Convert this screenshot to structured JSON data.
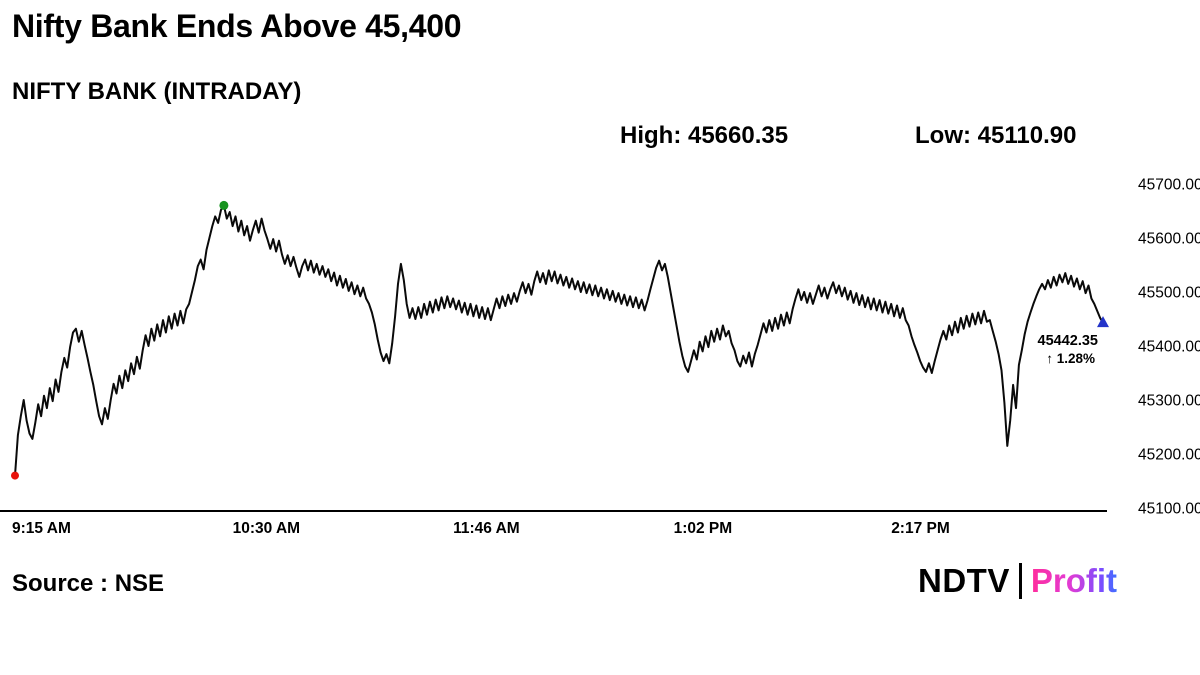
{
  "header": {
    "title": "Nifty Bank Ends Above 45,400",
    "subtitle": "NIFTY BANK (INTRADAY)",
    "high_label": "High: 45660.35",
    "low_label": "Low: 45110.90"
  },
  "footer": {
    "source": "Source : NSE",
    "brand_ndtv": "NDTV",
    "brand_profit": "Profit"
  },
  "chart_data": {
    "type": "line",
    "title": "NIFTY BANK (INTRADAY)",
    "series_name": "NIFTY BANK",
    "high": 45660.35,
    "low": 45110.9,
    "ylim": [
      45100,
      45700
    ],
    "xlim_minutes": [
      0,
      375
    ],
    "interval_minutes": 1,
    "y_ticks": [
      "45700.00",
      "45600.00",
      "45500.00",
      "45400.00",
      "45300.00",
      "45200.00",
      "45100.00"
    ],
    "x_ticks": [
      {
        "t": 0,
        "label": "9:15 AM"
      },
      {
        "t": 75,
        "label": "10:30 AM"
      },
      {
        "t": 151,
        "label": "11:46 AM"
      },
      {
        "t": 227,
        "label": "1:02 PM"
      },
      {
        "t": 302,
        "label": "2:17 PM"
      }
    ],
    "line_color": "#0a0a0a",
    "open_marker": {
      "t": 0,
      "value": 45160,
      "color": "#e8130c"
    },
    "high_marker": {
      "t": 72,
      "value": 45660.35,
      "color": "#17931f"
    },
    "close_marker": {
      "t": 375,
      "value": 45442.35,
      "color": "#2434c9",
      "shape": "triangle-up"
    },
    "last_price_label": "45442.35",
    "change_label": "↑ 1.28%",
    "change_color": "#1a8f28",
    "values_by_minute": [
      45160,
      45235,
      45270,
      45300,
      45262,
      45238,
      45228,
      45258,
      45292,
      45270,
      45308,
      45285,
      45322,
      45298,
      45338,
      45315,
      45352,
      45378,
      45360,
      45398,
      45425,
      45432,
      45408,
      45428,
      45402,
      45378,
      45352,
      45328,
      45298,
      45270,
      45255,
      45285,
      45265,
      45300,
      45330,
      45312,
      45345,
      45322,
      45355,
      45335,
      45368,
      45348,
      45380,
      45358,
      45392,
      45420,
      45400,
      45432,
      45410,
      45440,
      45418,
      45448,
      45425,
      45455,
      45432,
      45460,
      45438,
      45465,
      45442,
      45468,
      45478,
      45500,
      45522,
      45548,
      45560,
      45542,
      45578,
      45600,
      45622,
      45640,
      45628,
      45652,
      45660.35,
      45636,
      45648,
      45622,
      45640,
      45612,
      45632,
      45605,
      45622,
      45595,
      45615,
      45632,
      45610,
      45636,
      45614,
      45598,
      45580,
      45598,
      45575,
      45595,
      45570,
      45552,
      45568,
      45548,
      45565,
      45545,
      45528,
      45548,
      45560,
      45540,
      45558,
      45536,
      45552,
      45532,
      45548,
      45528,
      45542,
      45520,
      45536,
      45512,
      45530,
      45508,
      45524,
      45502,
      45518,
      45496,
      45512,
      45492,
      45508,
      45488,
      45478,
      45462,
      45440,
      45412,
      45388,
      45372,
      45385,
      45368,
      45405,
      45455,
      45515,
      45552,
      45522,
      45478,
      45452,
      45470,
      45450,
      45472,
      45452,
      45478,
      45458,
      45482,
      45462,
      45486,
      45466,
      45490,
      45470,
      45492,
      45472,
      45488,
      45468,
      45484,
      45462,
      45480,
      45458,
      45478,
      45455,
      45475,
      45452,
      45472,
      45450,
      45470,
      45448,
      45468,
      45488,
      45470,
      45492,
      45474,
      45495,
      45478,
      45498,
      45482,
      45502,
      45518,
      45498,
      45515,
      45495,
      45520,
      45538,
      45518,
      45535,
      45515,
      45540,
      45520,
      45538,
      45516,
      45532,
      45512,
      45528,
      45508,
      45525,
      45505,
      45520,
      45500,
      45518,
      45498,
      45514,
      45494,
      45512,
      45492,
      45508,
      45488,
      45505,
      45485,
      45502,
      45482,
      45498,
      45478,
      45495,
      45475,
      45492,
      45472,
      45490,
      45470,
      45486,
      45466,
      45484,
      45505,
      45525,
      45545,
      45558,
      45540,
      45552,
      45528,
      45498,
      45468,
      45438,
      45408,
      45382,
      45362,
      45352,
      45372,
      45392,
      45375,
      45408,
      45390,
      45418,
      45398,
      45428,
      45408,
      45432,
      45412,
      45438,
      45418,
      45428,
      45405,
      45392,
      45372,
      45362,
      45382,
      45368,
      45388,
      45362,
      45385,
      45402,
      45422,
      45442,
      45425,
      45448,
      45428,
      45452,
      45432,
      45458,
      45438,
      45462,
      45442,
      45468,
      45488,
      45505,
      45485,
      45500,
      45480,
      45498,
      45478,
      45495,
      45512,
      45492,
      45508,
      45488,
      45505,
      45518,
      45498,
      45512,
      45492,
      45508,
      45486,
      45502,
      45480,
      45498,
      45476,
      45494,
      45472,
      45490,
      45468,
      45488,
      45466,
      45485,
      45462,
      45482,
      45460,
      45478,
      45455,
      45475,
      45452,
      45470,
      45448,
      45438,
      45418,
      45402,
      45388,
      45372,
      45360,
      45352,
      45368,
      45350,
      45372,
      45392,
      45412,
      45428,
      45412,
      45438,
      45420,
      45445,
      45425,
      45452,
      45432,
      45456,
      45436,
      45460,
      45440,
      45462,
      45442,
      45465,
      45445,
      45448,
      45428,
      45408,
      45385,
      45355,
      45295,
      45215,
      45262,
      45328,
      45285,
      45365,
      45392,
      45422,
      45445,
      45462,
      45478,
      45492,
      45505,
      45515,
      45505,
      45522,
      45508,
      45528,
      45512,
      45532,
      45518,
      45535,
      45515,
      45530,
      45510,
      45525,
      45505,
      45520,
      45498,
      45512,
      45488,
      45478,
      45465,
      45452,
      45442.35
    ]
  }
}
